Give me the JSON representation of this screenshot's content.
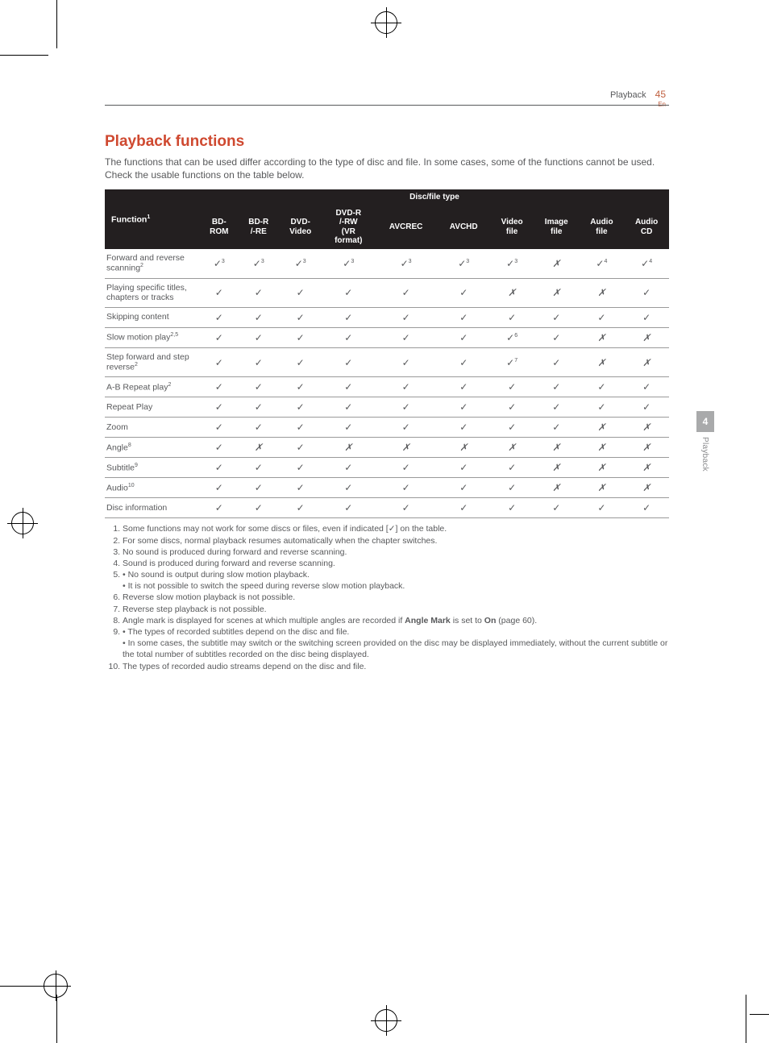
{
  "header": {
    "section": "Playback",
    "page": "45",
    "lang": "En"
  },
  "title": "Playback functions",
  "intro": "The functions that can be used differ according to the type of disc and file. In some cases, some of the functions cannot be used. Check the usable functions on the table below.",
  "table": {
    "group_header": "Disc/file type",
    "fn_header": "Function",
    "fn_header_sup": "1",
    "cols": [
      "BD-ROM",
      "BD-R /-RE",
      "DVD-Video",
      "DVD-R /-RW (VR format)",
      "AVCREC",
      "AVCHD",
      "Video file",
      "Image file",
      "Audio file",
      "Audio CD"
    ],
    "rows": [
      {
        "label": "Forward and reverse scanning",
        "sup": "2",
        "cells": [
          {
            "v": true,
            "s": "3"
          },
          {
            "v": true,
            "s": "3"
          },
          {
            "v": true,
            "s": "3"
          },
          {
            "v": true,
            "s": "3"
          },
          {
            "v": true,
            "s": "3"
          },
          {
            "v": true,
            "s": "3"
          },
          {
            "v": true,
            "s": "3"
          },
          {
            "v": false
          },
          {
            "v": true,
            "s": "4"
          },
          {
            "v": true,
            "s": "4"
          }
        ]
      },
      {
        "label": "Playing specific titles, chapters or tracks",
        "cells": [
          {
            "v": true
          },
          {
            "v": true
          },
          {
            "v": true
          },
          {
            "v": true
          },
          {
            "v": true
          },
          {
            "v": true
          },
          {
            "v": false
          },
          {
            "v": false
          },
          {
            "v": false
          },
          {
            "v": true
          }
        ]
      },
      {
        "label": "Skipping content",
        "cells": [
          {
            "v": true
          },
          {
            "v": true
          },
          {
            "v": true
          },
          {
            "v": true
          },
          {
            "v": true
          },
          {
            "v": true
          },
          {
            "v": true
          },
          {
            "v": true
          },
          {
            "v": true
          },
          {
            "v": true
          }
        ]
      },
      {
        "label": "Slow motion play",
        "sup": "2,5",
        "cells": [
          {
            "v": true
          },
          {
            "v": true
          },
          {
            "v": true
          },
          {
            "v": true
          },
          {
            "v": true
          },
          {
            "v": true
          },
          {
            "v": true,
            "s": "6"
          },
          {
            "v": true
          },
          {
            "v": false
          },
          {
            "v": false
          }
        ]
      },
      {
        "label": "Step forward and step reverse",
        "sup": "2",
        "cells": [
          {
            "v": true
          },
          {
            "v": true
          },
          {
            "v": true
          },
          {
            "v": true
          },
          {
            "v": true
          },
          {
            "v": true
          },
          {
            "v": true,
            "s": "7"
          },
          {
            "v": true
          },
          {
            "v": false
          },
          {
            "v": false
          }
        ]
      },
      {
        "label": "A-B Repeat play",
        "sup": "2",
        "cells": [
          {
            "v": true
          },
          {
            "v": true
          },
          {
            "v": true
          },
          {
            "v": true
          },
          {
            "v": true
          },
          {
            "v": true
          },
          {
            "v": true
          },
          {
            "v": true
          },
          {
            "v": true
          },
          {
            "v": true
          }
        ]
      },
      {
        "label": "Repeat Play",
        "cells": [
          {
            "v": true
          },
          {
            "v": true
          },
          {
            "v": true
          },
          {
            "v": true
          },
          {
            "v": true
          },
          {
            "v": true
          },
          {
            "v": true
          },
          {
            "v": true
          },
          {
            "v": true
          },
          {
            "v": true
          }
        ]
      },
      {
        "label": "Zoom",
        "cells": [
          {
            "v": true
          },
          {
            "v": true
          },
          {
            "v": true
          },
          {
            "v": true
          },
          {
            "v": true
          },
          {
            "v": true
          },
          {
            "v": true
          },
          {
            "v": true
          },
          {
            "v": false
          },
          {
            "v": false
          }
        ]
      },
      {
        "label": "Angle",
        "sup": "8",
        "cells": [
          {
            "v": true
          },
          {
            "v": false
          },
          {
            "v": true
          },
          {
            "v": false
          },
          {
            "v": false
          },
          {
            "v": false
          },
          {
            "v": false
          },
          {
            "v": false
          },
          {
            "v": false
          },
          {
            "v": false
          }
        ]
      },
      {
        "label": "Subtitle",
        "sup": "9",
        "cells": [
          {
            "v": true
          },
          {
            "v": true
          },
          {
            "v": true
          },
          {
            "v": true
          },
          {
            "v": true
          },
          {
            "v": true
          },
          {
            "v": true
          },
          {
            "v": false
          },
          {
            "v": false
          },
          {
            "v": false
          }
        ]
      },
      {
        "label": "Audio",
        "sup": "10",
        "cells": [
          {
            "v": true
          },
          {
            "v": true
          },
          {
            "v": true
          },
          {
            "v": true
          },
          {
            "v": true
          },
          {
            "v": true
          },
          {
            "v": true
          },
          {
            "v": false
          },
          {
            "v": false
          },
          {
            "v": false
          }
        ]
      },
      {
        "label": "Disc information",
        "cells": [
          {
            "v": true
          },
          {
            "v": true
          },
          {
            "v": true
          },
          {
            "v": true
          },
          {
            "v": true
          },
          {
            "v": true
          },
          {
            "v": true
          },
          {
            "v": true
          },
          {
            "v": true
          },
          {
            "v": true
          }
        ]
      }
    ]
  },
  "footnotes": [
    "Some functions may not work for some discs or files, even if indicated [✓] on the table.",
    "For some discs, normal playback resumes automatically when the chapter switches.",
    "No sound is produced during forward and reverse scanning.",
    "Sound is produced during forward and reverse scanning.",
    "• No sound is output during slow motion playback.\n• It is not possible to switch the speed during reverse slow motion playback.",
    "Reverse slow motion playback is not possible.",
    "Reverse step playback is not possible.",
    "Angle mark is displayed for scenes at which multiple angles are recorded if <b>Angle Mark</b> is set to <b>On</b> (page 60).",
    "• The types of recorded subtitles depend on the disc and file.\n• In some cases, the subtitle may switch or the switching screen provided on the disc may be displayed immediately, without the current subtitle or the total number of subtitles recorded on the disc being displayed.",
    "The types of recorded audio streams depend on the disc and file."
  ],
  "sidetab": {
    "num": "4",
    "label": "Playback"
  }
}
